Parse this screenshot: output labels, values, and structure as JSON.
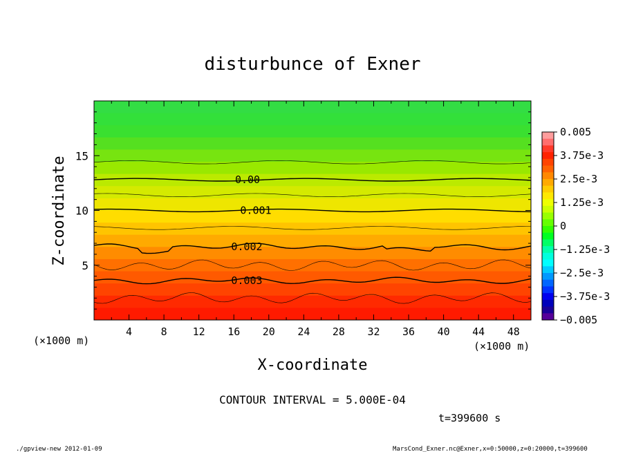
{
  "chart_data": {
    "type": "heatmap",
    "title": "disturbunce of Exner",
    "xlabel": "X-coordinate",
    "ylabel": "Z-coordinate",
    "x_unit": "(×1000 m)",
    "y_unit": "(×1000 m)",
    "xlim": [
      0,
      50
    ],
    "ylim": [
      0,
      20
    ],
    "x_ticks": [
      4,
      8,
      12,
      16,
      20,
      24,
      28,
      32,
      36,
      40,
      44,
      48
    ],
    "y_ticks": [
      5,
      10,
      15
    ],
    "contour_lines": [
      {
        "label": "0.00",
        "z": 12.8
      },
      {
        "label": "0.001",
        "z": 10.0
      },
      {
        "label": "0.002",
        "z": 6.7
      },
      {
        "label": "0.003",
        "z": 3.6
      }
    ],
    "colorbar": {
      "min": -0.005,
      "max": 0.005,
      "tick_labels": [
        "0.005",
        "3.75e-3",
        "2.5e-3",
        "1.25e-3",
        "0",
        "−1.25e-3",
        "−2.5e-3",
        "−3.75e-3",
        "−0.005"
      ],
      "colors": [
        "#ff9d9d",
        "#ff6e6e",
        "#ff3a2a",
        "#ff2200",
        "#ff4400",
        "#ff6200",
        "#ff8800",
        "#ffaa00",
        "#ffcc00",
        "#ffe800",
        "#eeff00",
        "#ccff00",
        "#99ff00",
        "#66ff00",
        "#33ff00",
        "#00ff22",
        "#00ff66",
        "#00ffaa",
        "#00ffdd",
        "#00ffff",
        "#00ccff",
        "#0099ff",
        "#0066ff",
        "#0033ff",
        "#0000ee",
        "#0000bb",
        "#1a0099",
        "#550099"
      ]
    },
    "contour_interval_text": "CONTOUR INTERVAL = 5.000E-04",
    "time_text": "t=399600 s"
  },
  "footer": {
    "left": "./gpview-new  2012-01-09",
    "right": "MarsCond_Exner.nc@Exner,x=0:50000,z=0:20000,t=399600"
  }
}
